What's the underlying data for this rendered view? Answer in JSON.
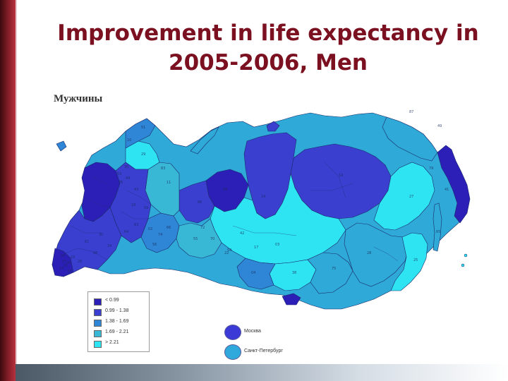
{
  "slide": {
    "title_line1": "Improvement in life expectancy in",
    "title_line2": "2005-2006, Men"
  },
  "map": {
    "subtitle": "Мужчины",
    "legend": [
      {
        "label": "< 0.99",
        "color": "#2c1fb8"
      },
      {
        "label": "0.99 - 1.38",
        "color": "#3a3fd0"
      },
      {
        "label": "1.38 - 1.69",
        "color": "#2f86d6"
      },
      {
        "label": "1.69 - 2.21",
        "color": "#39b8d6"
      },
      {
        "label": "> 2.21",
        "color": "#2fe4f2"
      }
    ],
    "cities": [
      {
        "label": "Москва",
        "color": "#3b3ad6"
      },
      {
        "label": "Санкт-Петербург",
        "color": "#2fa8dc"
      }
    ],
    "region_codes": [
      "49",
      "41",
      "87",
      "14",
      "27",
      "28",
      "25",
      "75",
      "03",
      "38",
      "24",
      "17",
      "04",
      "22",
      "42",
      "54",
      "70",
      "55",
      "72",
      "86",
      "89",
      "11",
      "29",
      "83",
      "10",
      "51",
      "35",
      "53",
      "76",
      "44",
      "43",
      "18",
      "59",
      "66",
      "74",
      "02",
      "56",
      "63",
      "64",
      "34",
      "61",
      "23",
      "01",
      "05",
      "07",
      "15",
      "20",
      "06",
      "26",
      "08",
      "30",
      "79",
      "65"
    ]
  }
}
